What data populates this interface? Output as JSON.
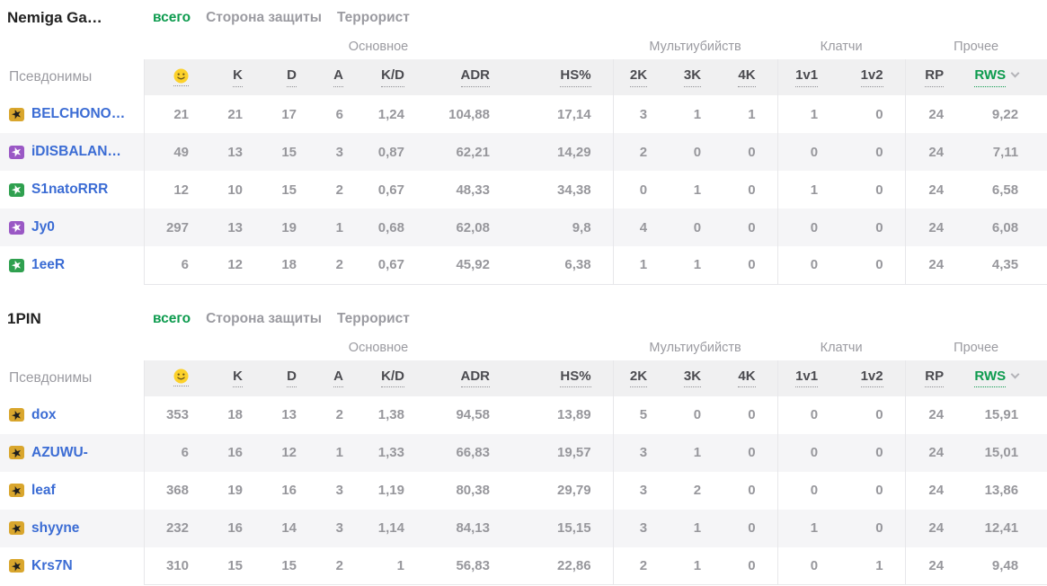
{
  "colors": {
    "accent_green": "#0d9b4e",
    "link_blue": "#3b6cd4",
    "badge_gold": "#d9a62d",
    "badge_purple": "#9a58c5",
    "badge_green": "#2fa04f",
    "smiley_yellow": "#fcd12a"
  },
  "tabs": [
    "всего",
    "Сторона защиты",
    "Террорист"
  ],
  "columns": {
    "nickname_header": "Псевдонимы",
    "smiley_icon": "smiley-icon",
    "groups": [
      {
        "label": "Основное",
        "span": 7
      },
      {
        "label": "Мультиубийств",
        "span": 3
      },
      {
        "label": "Клатчи",
        "span": 2
      },
      {
        "label": "Прочее",
        "span": 2
      }
    ],
    "stat_headers": [
      "K",
      "D",
      "A",
      "K/D",
      "ADR",
      "HS%",
      "2K",
      "3K",
      "4K",
      "1v1",
      "1v2",
      "RP",
      "RWS"
    ]
  },
  "teams": [
    {
      "name": "Nemiga Ga…",
      "players": [
        {
          "badge": "gold",
          "nick": "BELCHONO…",
          "stats": [
            "21",
            "21",
            "17",
            "6",
            "1,24",
            "104,88",
            "17,14",
            "3",
            "1",
            "1",
            "1",
            "0",
            "24",
            "9,22"
          ]
        },
        {
          "badge": "purple",
          "nick": "iDISBALAN…",
          "stats": [
            "49",
            "13",
            "15",
            "3",
            "0,87",
            "62,21",
            "14,29",
            "2",
            "0",
            "0",
            "0",
            "0",
            "24",
            "7,11"
          ]
        },
        {
          "badge": "green",
          "nick": "S1natoRRR",
          "stats": [
            "12",
            "10",
            "15",
            "2",
            "0,67",
            "48,33",
            "34,38",
            "0",
            "1",
            "0",
            "1",
            "0",
            "24",
            "6,58"
          ]
        },
        {
          "badge": "purple",
          "nick": "Jy0",
          "stats": [
            "297",
            "13",
            "19",
            "1",
            "0,68",
            "62,08",
            "9,8",
            "4",
            "0",
            "0",
            "0",
            "0",
            "24",
            "6,08"
          ]
        },
        {
          "badge": "green",
          "nick": "1eeR",
          "stats": [
            "6",
            "12",
            "18",
            "2",
            "0,67",
            "45,92",
            "6,38",
            "1",
            "1",
            "0",
            "0",
            "0",
            "24",
            "4,35"
          ]
        }
      ]
    },
    {
      "name": "1PIN",
      "players": [
        {
          "badge": "gold",
          "nick": "dox",
          "stats": [
            "353",
            "18",
            "13",
            "2",
            "1,38",
            "94,58",
            "13,89",
            "5",
            "0",
            "0",
            "0",
            "0",
            "24",
            "15,91"
          ]
        },
        {
          "badge": "gold",
          "nick": "AZUWU-",
          "stats": [
            "6",
            "16",
            "12",
            "1",
            "1,33",
            "66,83",
            "19,57",
            "3",
            "1",
            "0",
            "0",
            "0",
            "24",
            "15,01"
          ]
        },
        {
          "badge": "gold",
          "nick": "leaf",
          "stats": [
            "368",
            "19",
            "16",
            "3",
            "1,19",
            "80,38",
            "29,79",
            "3",
            "2",
            "0",
            "0",
            "0",
            "24",
            "13,86"
          ]
        },
        {
          "badge": "gold",
          "nick": "shyyne",
          "stats": [
            "232",
            "16",
            "14",
            "3",
            "1,14",
            "84,13",
            "15,15",
            "3",
            "1",
            "0",
            "1",
            "0",
            "24",
            "12,41"
          ]
        },
        {
          "badge": "gold",
          "nick": "Krs7N",
          "stats": [
            "310",
            "15",
            "15",
            "2",
            "1",
            "56,83",
            "22,86",
            "2",
            "1",
            "0",
            "0",
            "1",
            "24",
            "9,48"
          ]
        }
      ]
    }
  ]
}
